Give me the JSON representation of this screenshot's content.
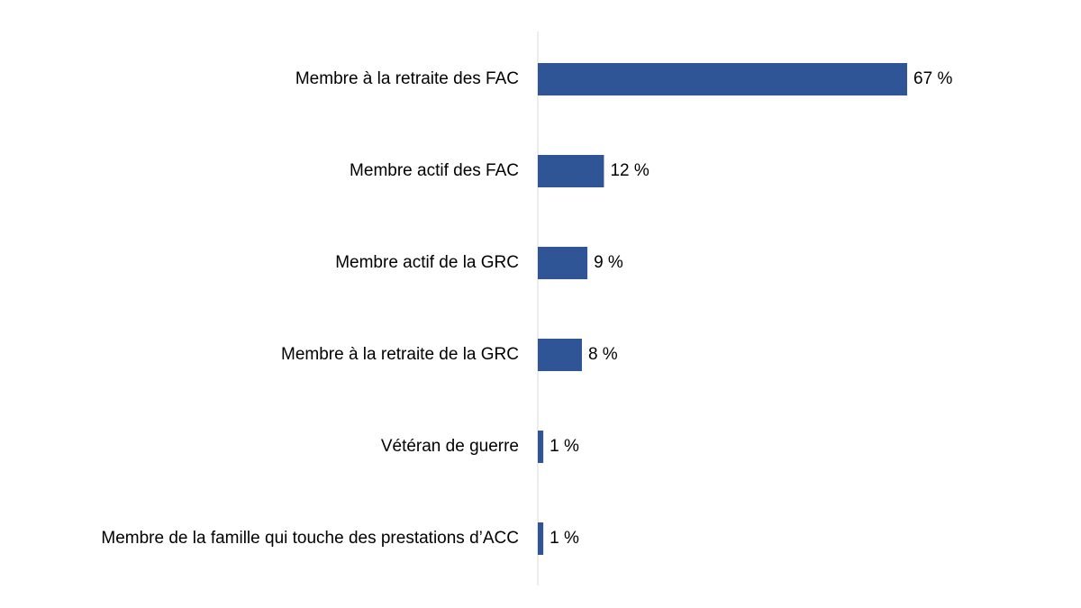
{
  "chart_data": {
    "type": "bar",
    "orientation": "horizontal",
    "categories": [
      "Membre à la retraite des FAC",
      "Membre actif des FAC",
      "Membre actif de la GRC",
      "Membre à la retraite de la GRC",
      "Vétéran de guerre",
      "Membre de la famille qui touche des prestations d’ACC"
    ],
    "values": [
      67,
      12,
      9,
      8,
      1,
      1
    ],
    "value_labels": [
      "67 %",
      "12 %",
      "9 %",
      "8 %",
      "1 %",
      "1 %"
    ],
    "color": "#2f5597"
  }
}
